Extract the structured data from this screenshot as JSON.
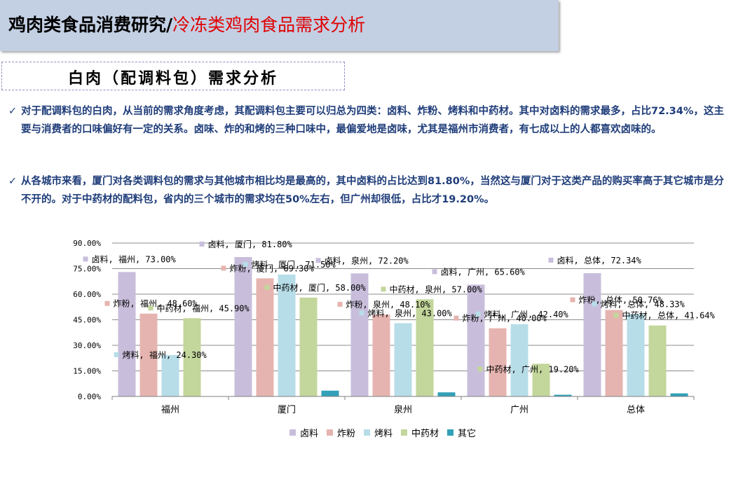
{
  "header": {
    "title_main": "鸡肉类食品消费研究/",
    "title_sub": "冷冻类鸡肉食品需求分析"
  },
  "subtitle": "白肉（配调料包）需求分析",
  "bullets": [
    "对于配调料包的白肉，从当前的需求角度考虑，其配调料包主要可以归总为四类：卤料、炸粉、烤料和中药材。其中对卤料的需求最多，占比72.34%，这主要与消费者的口味偏好有一定的关系。卤味、炸的和烤的三种口味中，最偏爱地是卤味，尤其是福州市消费者，有七成以上的人都喜欢卤味的。",
    "从各城市来看，厦门对各类调料包的需求与其他城市相比均是最高的，其中卤料的占比达到81.80%，当然这与厦门对于这类产品的购买率高于其它城市是分不开的。对于中药材的配料包，省内的三个城市的需求均在50%左右，但广州却很低，占比才19.20%。"
  ],
  "check_icon": "check-icon",
  "chart_data": {
    "type": "bar",
    "categories": [
      "福州",
      "厦门",
      "泉州",
      "广州",
      "总体"
    ],
    "series": [
      {
        "name": "卤料",
        "color": "#c8bedb",
        "values": [
          73.0,
          81.8,
          72.2,
          65.6,
          72.34
        ]
      },
      {
        "name": "炸粉",
        "color": "#e6b4b0",
        "values": [
          48.6,
          69.3,
          48.1,
          40.0,
          50.76
        ]
      },
      {
        "name": "烤料",
        "color": "#b7dde8",
        "values": [
          24.3,
          71.5,
          43.0,
          42.4,
          48.33
        ]
      },
      {
        "name": "中药材",
        "color": "#c3d69b",
        "values": [
          45.9,
          58.0,
          57.0,
          19.2,
          41.64
        ]
      },
      {
        "name": "其它",
        "color": "#31a0b8",
        "values": [
          0.0,
          3.4,
          2.4,
          1.0,
          1.8
        ]
      }
    ],
    "ylim": [
      0,
      90
    ],
    "yticks": [
      "0.00%",
      "15.00%",
      "30.00%",
      "45.00%",
      "60.00%",
      "75.00%",
      "90.00%"
    ],
    "grid": true,
    "legend": "bottom",
    "data_labels": [
      {
        "series": 0,
        "cat": 0,
        "text": "卤料, 福州, 73.00%"
      },
      {
        "series": 1,
        "cat": 0,
        "text": "炸粉, 福州, 48.60%"
      },
      {
        "series": 2,
        "cat": 0,
        "text": "烤料, 福州, 24.30%"
      },
      {
        "series": 3,
        "cat": 0,
        "text": "中药材, 福州, 45.90%"
      },
      {
        "series": 0,
        "cat": 1,
        "text": "卤料, 厦门, 81.80%"
      },
      {
        "series": 1,
        "cat": 1,
        "text": "炸粉, 厦门, 69.30%"
      },
      {
        "series": 2,
        "cat": 1,
        "text": "烤料, 厦门, 71.50%"
      },
      {
        "series": 3,
        "cat": 1,
        "text": "中药材, 厦门, 58.00%"
      },
      {
        "series": 0,
        "cat": 2,
        "text": "卤料, 泉州, 72.20%"
      },
      {
        "series": 1,
        "cat": 2,
        "text": "炸粉, 泉州, 48.10%"
      },
      {
        "series": 2,
        "cat": 2,
        "text": "烤料, 泉州, 43.00%"
      },
      {
        "series": 3,
        "cat": 2,
        "text": "中药材, 泉州, 57.00%"
      },
      {
        "series": 0,
        "cat": 3,
        "text": "卤料, 广州, 65.60%"
      },
      {
        "series": 1,
        "cat": 3,
        "text": "炸粉, 广州, 40.00%"
      },
      {
        "series": 2,
        "cat": 3,
        "text": "烤料, 广州, 42.40%"
      },
      {
        "series": 3,
        "cat": 3,
        "text": "中药材, 广州, 19.20%"
      },
      {
        "series": 0,
        "cat": 4,
        "text": "卤料, 总体, 72.34%"
      },
      {
        "series": 1,
        "cat": 4,
        "text": "炸粉, 总体, 50.76%"
      },
      {
        "series": 2,
        "cat": 4,
        "text": "烤料, 总体, 48.33%"
      },
      {
        "series": 3,
        "cat": 4,
        "text": "中药材, 总体, 41.64%"
      }
    ]
  }
}
